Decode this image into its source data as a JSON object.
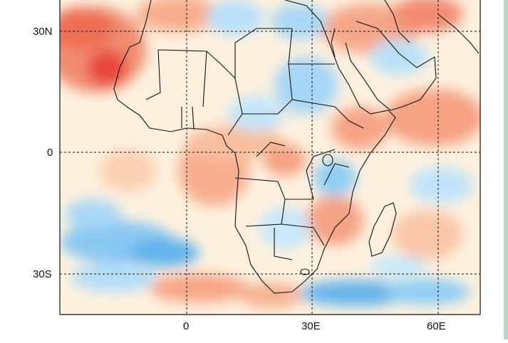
{
  "map": {
    "lat_labels": [
      {
        "key": "30n",
        "text": "30N"
      },
      {
        "key": "eq",
        "text": "0"
      },
      {
        "key": "30s",
        "text": "30S"
      }
    ],
    "lon_labels": [
      {
        "key": "0e",
        "text": "0"
      },
      {
        "key": "30e",
        "text": "30E"
      },
      {
        "key": "60e",
        "text": "60E"
      }
    ],
    "extent": {
      "lon_min": -30,
      "lon_max": 70,
      "lat_min": -40,
      "lat_max": 38
    },
    "gridlines": "dashed every 30 degrees",
    "anomaly_colors": {
      "strong_positive": "#e8473a",
      "positive": "#f59a7a",
      "weak_positive": "#fbd8b0",
      "neutral": "#fdf3e0",
      "weak_negative": "#cdeafc",
      "negative": "#8fcdf4",
      "strong_negative": "#4aa3e6"
    }
  }
}
